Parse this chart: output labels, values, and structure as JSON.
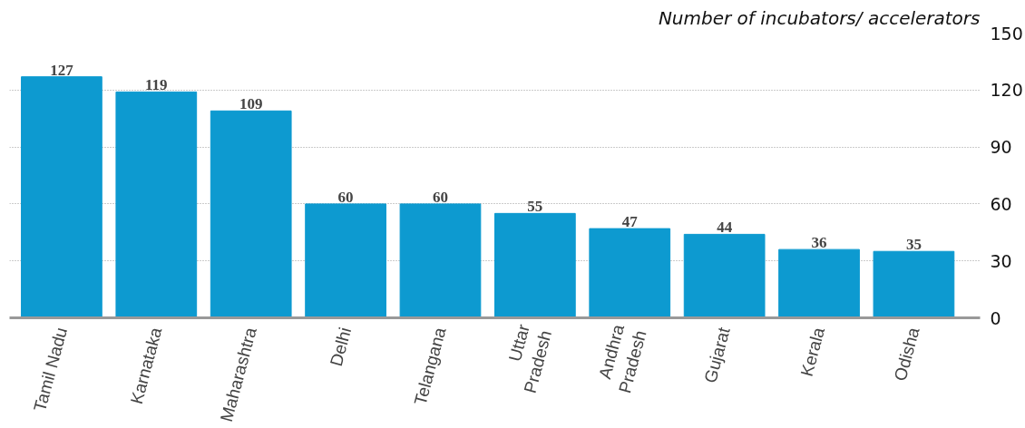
{
  "chart_data": {
    "type": "bar",
    "ylabel": "Number of incubators/ accelerators",
    "categories": [
      "Tamil Nadu",
      "Karnataka",
      "Maharashtra",
      "Delhi",
      "Telangana",
      "Uttar\nPradesh",
      "Andhra\nPradesh",
      "Gujarat",
      "Kerala",
      "Odisha"
    ],
    "values": [
      127,
      119,
      109,
      60,
      60,
      55,
      47,
      44,
      36,
      35
    ],
    "color": "#0d9ad0",
    "data_labels": true,
    "grid": "y",
    "ylim": [
      0,
      150
    ],
    "yticks": [
      0,
      30,
      60,
      90,
      120,
      150
    ]
  }
}
